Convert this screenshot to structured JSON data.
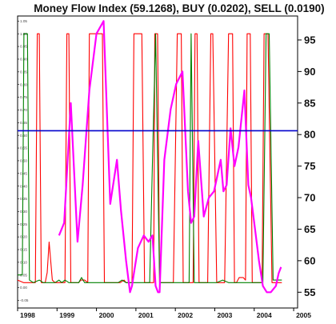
{
  "chart_data": {
    "type": "line",
    "title": "Money Flow Index (59.1268), BUY (0.0202), SELL (0.0190)",
    "x_ticks": [
      "1998",
      "1999",
      "2000",
      "2001",
      "2002",
      "2003",
      "2004",
      "2005"
    ],
    "xlim": [
      1998.0,
      2005.1
    ],
    "right_axis": {
      "ticks": [
        55,
        60,
        65,
        70,
        75,
        80,
        85,
        90,
        95
      ],
      "ylim": [
        52.5,
        98.8
      ]
    },
    "left_axis": {
      "ticks": [
        "-0.05",
        "0.00",
        "0.05",
        "0.10",
        "0.15",
        "0.20",
        "0.25",
        "0.30",
        "0.35",
        "0.40",
        "0.45",
        "0.50",
        "0.55",
        "0.60",
        "0.65",
        "0.70",
        "0.75",
        "0.80",
        "0.85",
        "0.90",
        "0.95",
        "1.00",
        "1.05"
      ],
      "ylim": [
        -0.08,
        1.07
      ]
    },
    "horizontal_line": {
      "axis": "right",
      "value": 80.6,
      "color": "#0000cc"
    },
    "series": [
      {
        "axis": "right",
        "color": "#ff00ff",
        "x": [
          1999.05,
          1999.18,
          1999.35,
          1999.52,
          1999.65,
          1999.82,
          2000.0,
          2000.18,
          2000.35,
          2000.52,
          2000.62,
          2000.75,
          2000.85,
          2000.9,
          2000.95,
          2001.05,
          2001.2,
          2001.32,
          2001.42,
          2001.5,
          2001.56,
          2001.6,
          2001.72,
          2001.88,
          2002.02,
          2002.18,
          2002.32,
          2002.4,
          2002.48,
          2002.58,
          2002.72,
          2002.85,
          2002.98,
          2003.05,
          2003.15,
          2003.22,
          2003.3,
          2003.4,
          2003.5,
          2003.6,
          2003.75,
          2003.85,
          2003.92,
          2004.02,
          2004.12,
          2004.22,
          2004.32,
          2004.42,
          2004.55,
          2004.62,
          2004.68
        ],
        "y": [
          64,
          66,
          85,
          63,
          72,
          87,
          96,
          98,
          69,
          76,
          68,
          60,
          55,
          56,
          58,
          62,
          64,
          63,
          64,
          56,
          55,
          55,
          76,
          84,
          88,
          90,
          71,
          66,
          67,
          79,
          67,
          70,
          71,
          73,
          76,
          71,
          72,
          81,
          75,
          78,
          87,
          72,
          70,
          65,
          60,
          56,
          55,
          55,
          56,
          58,
          59
        ]
      },
      {
        "axis": "left",
        "color": "#ff0000",
        "x": [
          1998.0,
          1998.15,
          1998.35,
          1998.45,
          1998.5,
          1998.55,
          1998.6,
          1998.7,
          1998.75,
          1998.8,
          1998.88,
          1998.95,
          1999.05,
          1999.2,
          1999.25,
          1999.3,
          1999.35,
          1999.45,
          1999.5,
          1999.55,
          1999.6,
          1999.7,
          1999.78,
          1999.82,
          1999.88,
          2000.0,
          2000.05,
          2000.15,
          2000.2,
          2000.25,
          2000.35,
          2000.4,
          2000.5,
          2000.6,
          2000.7,
          2000.75,
          2000.82,
          2000.9,
          2000.95,
          2001.05,
          2001.15,
          2001.22,
          2001.3,
          2001.35,
          2001.45,
          2001.48,
          2001.55,
          2001.6,
          2001.7,
          2001.75,
          2001.82,
          2001.9,
          2001.95,
          2002.05,
          2002.15,
          2002.2,
          2002.25,
          2002.35,
          2002.45,
          2002.5,
          2002.55,
          2002.6,
          2002.7,
          2002.75,
          2002.82,
          2002.9,
          2002.95,
          2003.05,
          2003.15,
          2003.2,
          2003.25,
          2003.35,
          2003.45,
          2003.5,
          2003.55,
          2003.62,
          2003.72,
          2003.78,
          2003.82,
          2003.9,
          2003.95,
          2004.05,
          2004.15,
          2004.2,
          2004.25,
          2004.35,
          2004.45,
          2004.5,
          2004.58,
          2004.62,
          2004.7
        ],
        "y": [
          0.03,
          0.02,
          0.02,
          0.02,
          1.0,
          1.0,
          0.02,
          0.02,
          0.06,
          0.18,
          0.03,
          0.02,
          0.02,
          0.02,
          1.0,
          1.0,
          0.02,
          0.02,
          0.02,
          0.02,
          0.03,
          0.03,
          0.02,
          1.0,
          1.0,
          1.0,
          1.0,
          1.0,
          0.02,
          0.02,
          0.02,
          0.02,
          0.02,
          0.02,
          0.03,
          0.02,
          0.02,
          0.02,
          1.0,
          1.0,
          1.0,
          0.02,
          0.02,
          0.02,
          0.02,
          1.0,
          1.0,
          0.02,
          0.02,
          0.02,
          0.02,
          0.02,
          0.02,
          1.0,
          1.0,
          0.02,
          0.02,
          0.02,
          0.02,
          1.0,
          1.0,
          0.02,
          0.02,
          0.02,
          0.02,
          1.0,
          1.0,
          0.02,
          0.02,
          0.02,
          0.02,
          1.0,
          1.0,
          0.02,
          0.02,
          0.04,
          0.04,
          0.03,
          1.0,
          1.0,
          0.02,
          0.02,
          0.02,
          0.02,
          1.0,
          1.0,
          0.02,
          0.02,
          0.02,
          0.02,
          0.02
        ]
      },
      {
        "axis": "left",
        "color": "#008000",
        "x": [
          1998.0,
          1998.12,
          1998.16,
          1998.25,
          1998.3,
          1998.4,
          1998.55,
          1998.65,
          1998.8,
          1998.95,
          1999.05,
          1999.12,
          1999.2,
          1999.3,
          1999.45,
          1999.55,
          1999.62,
          1999.7,
          1999.8,
          1999.95,
          2000.1,
          2000.25,
          2000.4,
          2000.55,
          2000.65,
          2000.75,
          2000.9,
          2001.05,
          2001.2,
          2001.35,
          2001.42,
          2001.5,
          2001.6,
          2001.75,
          2001.9,
          2002.05,
          2002.2,
          2002.35,
          2002.4,
          2002.48,
          2002.6,
          2002.75,
          2002.9,
          2003.05,
          2003.2,
          2003.35,
          2003.55,
          2003.7,
          2003.82,
          2003.95,
          2004.05,
          2004.15,
          2004.22,
          2004.3,
          2004.38,
          2004.48,
          2004.6,
          2004.7
        ],
        "y": [
          0.05,
          0.05,
          1.0,
          1.0,
          0.03,
          0.02,
          0.03,
          0.02,
          0.02,
          0.02,
          0.03,
          0.02,
          0.03,
          0.02,
          0.02,
          0.02,
          0.04,
          0.02,
          0.02,
          0.02,
          0.02,
          0.02,
          0.02,
          0.02,
          0.03,
          0.02,
          0.02,
          0.02,
          0.02,
          0.02,
          0.5,
          1.0,
          0.02,
          0.02,
          0.02,
          0.02,
          0.02,
          0.02,
          1.0,
          0.02,
          0.02,
          0.02,
          0.02,
          0.02,
          0.03,
          0.02,
          0.02,
          0.02,
          0.02,
          0.02,
          0.02,
          0.02,
          0.02,
          1.0,
          1.0,
          0.03,
          0.03,
          0.03
        ]
      }
    ],
    "grid": false,
    "legend": "none"
  }
}
